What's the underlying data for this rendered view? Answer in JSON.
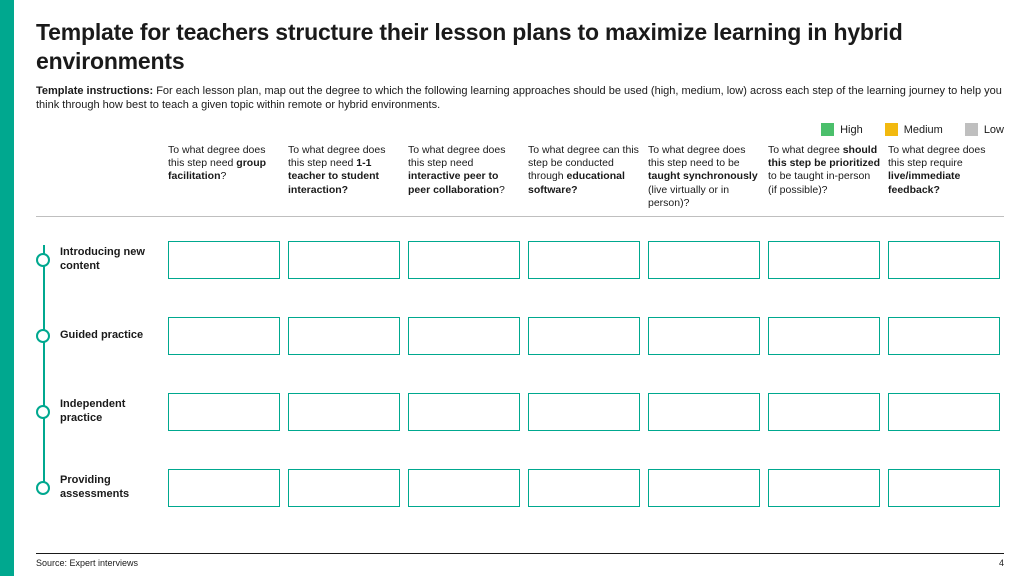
{
  "title": "Template for teachers structure their lesson plans to maximize learning in hybrid environments",
  "instructions_label": "Template instructions:",
  "instructions_text": " For each lesson plan, map out the degree to which the following learning approaches should be used (high, medium, low) across each step of the learning journey to help you think through how best to teach a given topic within remote or hybrid environments.",
  "legend": [
    {
      "label": "High",
      "color": "#4bbf6b"
    },
    {
      "label": "Medium",
      "color": "#f2b90f"
    },
    {
      "label": "Low",
      "color": "#bfbfbf"
    }
  ],
  "columns": [
    {
      "pre": "To what degree does this step need ",
      "bold": "group facilitation",
      "post": "?"
    },
    {
      "pre": "To what degree does this step need ",
      "bold": "1-1 teacher to student interaction?",
      "post": ""
    },
    {
      "pre": "To what degree does this step need ",
      "bold": "interactive peer to peer collaboration",
      "post": "?"
    },
    {
      "pre": "To what degree can this step be conducted through ",
      "bold": "educational software?",
      "post": ""
    },
    {
      "pre": "To what degree does this step need to be ",
      "bold": "taught synchronously",
      "post": " (live virtually or in person)?"
    },
    {
      "pre": "To what degree ",
      "bold": "should this step be prioritized",
      "post": " to be taught in-person (if possible)?"
    },
    {
      "pre": "To what degree does this step require ",
      "bold": "live/immediate feedback?",
      "post": ""
    }
  ],
  "rows": [
    {
      "label": "Introducing new content"
    },
    {
      "label": "Guided practice"
    },
    {
      "label": "Independent practice"
    },
    {
      "label": "Providing assessments"
    }
  ],
  "accent_color": "#00a88f",
  "source": "Source: Expert interviews",
  "page_number": "4"
}
